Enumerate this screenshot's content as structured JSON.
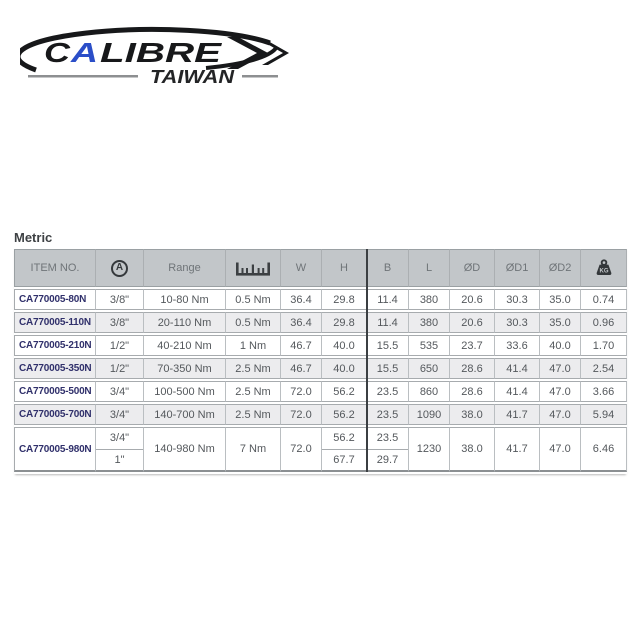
{
  "logo": {
    "letter_c": "C",
    "letter_a": "A",
    "letters_rest": "LIBRE",
    "subtitle": "TAIWAN",
    "accent_blue": "#2b4ec8"
  },
  "section_title": "Metric",
  "colors": {
    "header_bg": "#c2c6c9",
    "row_alt": "#ececee",
    "item_text": "#30306b",
    "divider_dark": "#3b3f42"
  },
  "icons": {
    "drive": "circled-a-drive-icon",
    "graduation": "ruler-icon",
    "weight": "kg-weight-icon"
  },
  "table": {
    "col_keys": [
      "item",
      "drive",
      "range",
      "grad",
      "w",
      "h",
      "b",
      "l",
      "od",
      "od1",
      "od2",
      "kg"
    ],
    "header": {
      "item": "ITEM NO.",
      "drive_icon_letter": "A",
      "range": "Range",
      "w": "W",
      "h": "H",
      "b": "B",
      "l": "L",
      "od": "ØD",
      "od1": "ØD1",
      "od2": "ØD2",
      "kg_icon_label": "KG"
    },
    "rows": [
      {
        "item": "CA770005-80N",
        "drive": "3/8\"",
        "range": "10-80 Nm",
        "grad": "0.5 Nm",
        "w": "36.4",
        "h": "29.8",
        "b": "11.4",
        "l": "380",
        "od": "20.6",
        "od1": "30.3",
        "od2": "35.0",
        "kg": "0.74"
      },
      {
        "item": "CA770005-110N",
        "drive": "3/8\"",
        "range": "20-110 Nm",
        "grad": "0.5 Nm",
        "w": "36.4",
        "h": "29.8",
        "b": "11.4",
        "l": "380",
        "od": "20.6",
        "od1": "30.3",
        "od2": "35.0",
        "kg": "0.96"
      },
      {
        "item": "CA770005-210N",
        "drive": "1/2\"",
        "range": "40-210 Nm",
        "grad": "1 Nm",
        "w": "46.7",
        "h": "40.0",
        "b": "15.5",
        "l": "535",
        "od": "23.7",
        "od1": "33.6",
        "od2": "40.0",
        "kg": "1.70"
      },
      {
        "item": "CA770005-350N",
        "drive": "1/2\"",
        "range": "70-350 Nm",
        "grad": "2.5 Nm",
        "w": "46.7",
        "h": "40.0",
        "b": "15.5",
        "l": "650",
        "od": "28.6",
        "od1": "41.4",
        "od2": "47.0",
        "kg": "2.54"
      },
      {
        "item": "CA770005-500N",
        "drive": "3/4\"",
        "range": "100-500 Nm",
        "grad": "2.5 Nm",
        "w": "72.0",
        "h": "56.2",
        "b": "23.5",
        "l": "860",
        "od": "28.6",
        "od1": "41.4",
        "od2": "47.0",
        "kg": "3.66"
      },
      {
        "item": "CA770005-700N",
        "drive": "3/4\"",
        "range": "140-700 Nm",
        "grad": "2.5 Nm",
        "w": "72.0",
        "h": "56.2",
        "b": "23.5",
        "l": "1090",
        "od": "38.0",
        "od1": "41.7",
        "od2": "47.0",
        "kg": "5.94"
      },
      {
        "item": "CA770005-980N",
        "drive": [
          "3/4\"",
          "1\""
        ],
        "range": "140-980 Nm",
        "grad": "7 Nm",
        "w": "72.0",
        "h": [
          "56.2",
          "67.7"
        ],
        "b": [
          "23.5",
          "29.7"
        ],
        "l": "1230",
        "od": "38.0",
        "od1": "41.7",
        "od2": "47.0",
        "kg": "6.46"
      }
    ]
  }
}
